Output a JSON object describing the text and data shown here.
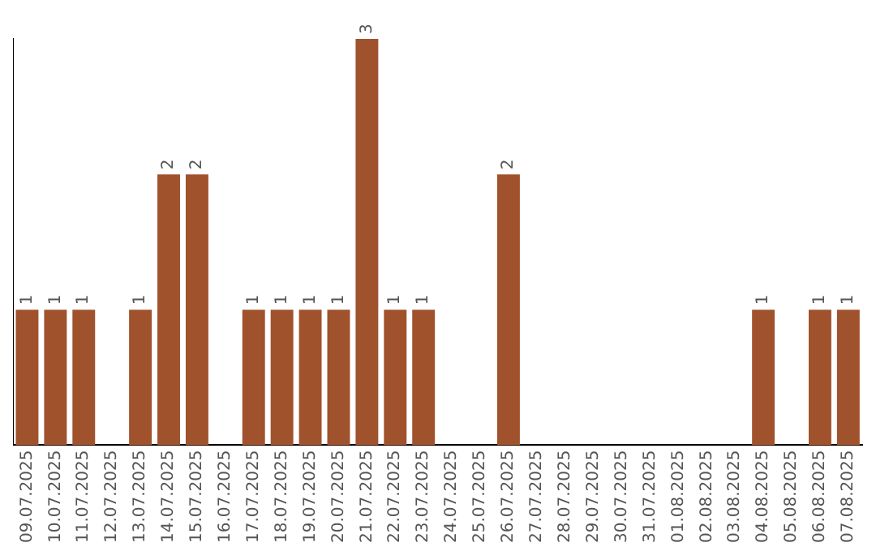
{
  "chart_data": {
    "type": "bar",
    "categories": [
      "09.07.2025",
      "10.07.2025",
      "11.07.2025",
      "12.07.2025",
      "13.07.2025",
      "14.07.2025",
      "15.07.2025",
      "16.07.2025",
      "17.07.2025",
      "18.07.2025",
      "19.07.2025",
      "20.07.2025",
      "21.07.2025",
      "22.07.2025",
      "23.07.2025",
      "24.07.2025",
      "25.07.2025",
      "26.07.2025",
      "27.07.2025",
      "28.07.2025",
      "29.07.2025",
      "30.07.2025",
      "31.07.2025",
      "01.08.2025",
      "02.08.2025",
      "03.08.2025",
      "04.08.2025",
      "05.08.2025",
      "06.08.2025",
      "07.08.2025"
    ],
    "values": [
      1,
      1,
      1,
      0,
      1,
      2,
      2,
      0,
      1,
      1,
      1,
      1,
      3,
      1,
      1,
      0,
      0,
      2,
      0,
      0,
      0,
      0,
      0,
      0,
      0,
      0,
      1,
      0,
      1,
      1
    ],
    "value_labels": [
      "1",
      "1",
      "1",
      null,
      "1",
      "2",
      "2",
      null,
      "1",
      "1",
      "1",
      "1",
      "3",
      "1",
      "1",
      null,
      null,
      "2",
      null,
      null,
      null,
      null,
      null,
      null,
      null,
      null,
      "1",
      null,
      "1",
      "1"
    ],
    "color": "#a0522d",
    "grid": false,
    "legend": false
  }
}
